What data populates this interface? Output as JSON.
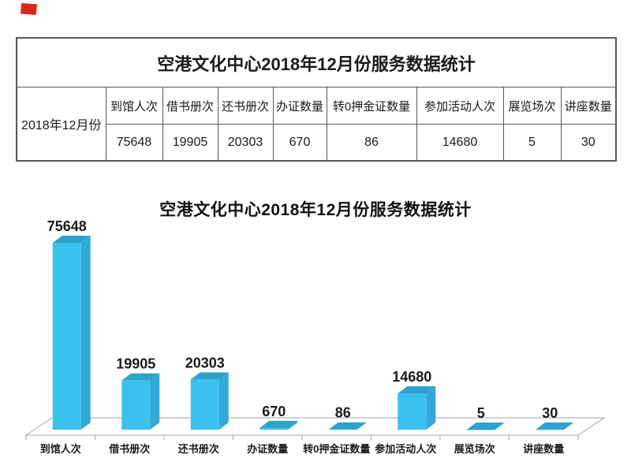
{
  "decoration": {
    "red_flag_color": "#d9281a"
  },
  "table": {
    "title": "空港文化中心2018年12月份服务数据统计",
    "row_label": "2018年12月份",
    "headers": [
      "到馆人次",
      "借书册次",
      "还书册次",
      "办证数量",
      "转0押金证数量",
      "参加活动人次",
      "展览场次",
      "讲座数量"
    ],
    "values": [
      "75648",
      "19905",
      "20303",
      "670",
      "86",
      "14680",
      "5",
      "30"
    ],
    "border_color": "#595959",
    "text_color": "#1a1a1a"
  },
  "chart_data": {
    "type": "bar",
    "style": "3d-cylinder-free pseudo-3d bars",
    "title": "空港文化中心2018年12月份服务数据统计",
    "categories": [
      "到馆人次",
      "借书册次",
      "还书册次",
      "办证数量",
      "转0押金证数量",
      "参加活动人次",
      "展览场次",
      "讲座数量"
    ],
    "values": [
      75648,
      19905,
      20303,
      670,
      86,
      14680,
      5,
      30
    ],
    "ylim": [
      0,
      75648
    ],
    "gridlines": false,
    "legend": "none",
    "data_labels_shown": true,
    "bar_front_color": "#3ac1ee",
    "bar_top_color": "#2ea2cc",
    "bar_side_color": "#2fa9d6",
    "axis_color": "#a6a6a6",
    "label_color": "#1a1a1a"
  }
}
